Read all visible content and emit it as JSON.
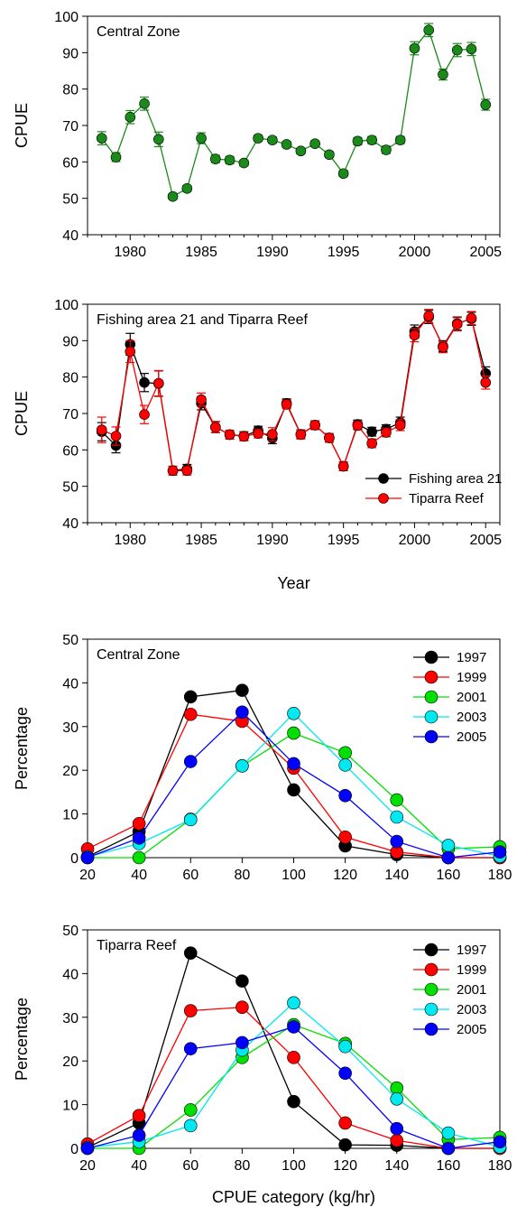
{
  "chart_data": [
    {
      "type": "line",
      "panel_label": "Central Zone",
      "ylabel": "CPUE",
      "xlabel": "",
      "xlim": [
        1977,
        2006
      ],
      "ylim": [
        40,
        100
      ],
      "xticks": [
        "1980",
        "1985",
        "1990",
        "1995",
        "2000",
        "2005"
      ],
      "yticks": [
        "40",
        "50",
        "60",
        "70",
        "80",
        "90",
        "100"
      ],
      "error_bars": true,
      "legend": null,
      "series": [
        {
          "color": "#1a8a1a",
          "x": [
            1978,
            1979,
            1980,
            1981,
            1982,
            1983,
            1984,
            1985,
            1986,
            1987,
            1988,
            1989,
            1990,
            1991,
            1992,
            1993,
            1994,
            1995,
            1996,
            1997,
            1998,
            1999,
            2000,
            2001,
            2002,
            2003,
            2004,
            2005
          ],
          "y": [
            66.5,
            61.3,
            72.3,
            76.0,
            66.2,
            50.5,
            52.7,
            66.5,
            60.8,
            60.5,
            59.7,
            66.5,
            66.0,
            64.8,
            63.0,
            65.0,
            62.0,
            56.8,
            65.7,
            66.0,
            63.3,
            66.0,
            91.2,
            96.2,
            84.0,
            90.7,
            91.0,
            75.7
          ],
          "err": [
            1.8,
            1.2,
            1.8,
            1.8,
            2.0,
            0.8,
            0.8,
            1.5,
            1.0,
            1.0,
            0.8,
            0.8,
            0.8,
            0.8,
            0.8,
            0.8,
            0.8,
            0.8,
            1.0,
            1.0,
            1.0,
            1.0,
            1.8,
            1.8,
            1.5,
            1.8,
            1.8,
            1.5
          ]
        }
      ]
    },
    {
      "type": "line",
      "panel_label": "Fishing area 21 and Tiparra Reef",
      "ylabel": "CPUE",
      "xlabel": "Year",
      "xlim": [
        1977,
        2006
      ],
      "ylim": [
        40,
        100
      ],
      "xticks": [
        "1980",
        "1985",
        "1990",
        "1995",
        "2000",
        "2005"
      ],
      "yticks": [
        "40",
        "50",
        "60",
        "70",
        "80",
        "90",
        "100"
      ],
      "error_bars": true,
      "legend": "bottom-right",
      "series": [
        {
          "name": "Fishing area 21",
          "color": "#000000",
          "x": [
            1978,
            1979,
            1980,
            1981,
            1982,
            1983,
            1984,
            1985,
            1986,
            1987,
            1988,
            1989,
            1990,
            1991,
            1992,
            1993,
            1994,
            1995,
            1996,
            1997,
            1998,
            1999,
            2000,
            2001,
            2002,
            2003,
            2004,
            2005
          ],
          "y": [
            65.0,
            61.2,
            89.0,
            78.5,
            78.2,
            54.3,
            54.8,
            72.8,
            66.3,
            64.2,
            63.8,
            65.3,
            63.2,
            72.8,
            64.3,
            66.8,
            63.3,
            55.5,
            67.0,
            65.0,
            65.7,
            67.5,
            92.5,
            96.5,
            88.5,
            94.7,
            96.0,
            81.0
          ],
          "err": [
            2.5,
            2.0,
            3.0,
            2.5,
            3.5,
            1.2,
            1.2,
            1.8,
            1.5,
            1.2,
            1.2,
            1.2,
            1.5,
            1.2,
            1.2,
            1.2,
            1.2,
            1.2,
            1.2,
            1.2,
            1.2,
            1.5,
            1.8,
            1.8,
            1.5,
            1.8,
            1.8,
            1.8
          ]
        },
        {
          "name": "Tiparra Reef",
          "color": "#ff0000",
          "x": [
            1978,
            1979,
            1980,
            1981,
            1982,
            1983,
            1984,
            1985,
            1986,
            1987,
            1988,
            1989,
            1990,
            1991,
            1992,
            1993,
            1994,
            1995,
            1996,
            1997,
            1998,
            1999,
            2000,
            2001,
            2002,
            2003,
            2004,
            2005
          ],
          "y": [
            65.5,
            63.8,
            87.0,
            69.7,
            78.3,
            54.3,
            54.3,
            73.8,
            66.2,
            64.2,
            63.7,
            64.5,
            64.3,
            72.5,
            64.2,
            66.8,
            63.3,
            55.5,
            66.7,
            61.8,
            64.8,
            66.8,
            91.5,
            96.8,
            88.2,
            94.5,
            96.2,
            78.5
          ],
          "err": [
            3.5,
            2.5,
            3.0,
            2.5,
            3.5,
            1.2,
            1.2,
            1.8,
            1.5,
            1.2,
            1.2,
            1.2,
            1.8,
            1.2,
            1.2,
            1.2,
            1.2,
            1.2,
            1.2,
            1.2,
            1.2,
            1.5,
            1.8,
            1.8,
            1.5,
            1.8,
            1.8,
            1.8
          ]
        }
      ]
    },
    {
      "type": "line",
      "panel_label": "Central Zone",
      "ylabel": "Percentage",
      "xlabel": "",
      "xlim": [
        20,
        180
      ],
      "ylim": [
        0,
        50
      ],
      "xticks": [
        "20",
        "40",
        "60",
        "80",
        "100",
        "120",
        "140",
        "160",
        "180"
      ],
      "yticks": [
        "0",
        "10",
        "20",
        "30",
        "40",
        "50"
      ],
      "error_bars": false,
      "legend": "top-right",
      "x": [
        20,
        40,
        60,
        80,
        100,
        120,
        140,
        160,
        180
      ],
      "series": [
        {
          "name": "1997",
          "color": "#000000",
          "values": [
            0.2,
            6.0,
            36.8,
            38.3,
            15.5,
            2.7,
            0.7,
            0.0,
            0.0
          ]
        },
        {
          "name": "1999",
          "color": "#ff0000",
          "values": [
            2.0,
            7.8,
            32.8,
            31.2,
            20.5,
            4.7,
            1.3,
            0.0,
            0.0
          ]
        },
        {
          "name": "2001",
          "color": "#00e000",
          "values": [
            0.0,
            0.0,
            8.8,
            21.0,
            28.5,
            24.0,
            13.2,
            2.0,
            2.5
          ]
        },
        {
          "name": "2003",
          "color": "#00e8f0",
          "values": [
            0.2,
            3.2,
            8.7,
            21.0,
            33.0,
            21.2,
            9.3,
            2.8,
            0.3
          ]
        },
        {
          "name": "2005",
          "color": "#0000ff",
          "values": [
            0.0,
            4.5,
            22.0,
            33.3,
            21.5,
            14.2,
            3.7,
            0.0,
            1.3
          ]
        }
      ]
    },
    {
      "type": "line",
      "panel_label": "Tiparra Reef",
      "ylabel": "Percentage",
      "xlabel": "CPUE category (kg/hr)",
      "xlim": [
        20,
        180
      ],
      "ylim": [
        0,
        50
      ],
      "xticks": [
        "20",
        "40",
        "60",
        "80",
        "100",
        "120",
        "140",
        "160",
        "180"
      ],
      "yticks": [
        "0",
        "10",
        "20",
        "30",
        "40",
        "50"
      ],
      "error_bars": false,
      "legend": "top-right",
      "x": [
        20,
        40,
        60,
        80,
        100,
        120,
        140,
        160,
        180
      ],
      "series": [
        {
          "name": "1997",
          "color": "#000000",
          "values": [
            0.2,
            5.8,
            44.7,
            38.3,
            10.7,
            0.8,
            0.7,
            0.0,
            0.0
          ]
        },
        {
          "name": "1999",
          "color": "#ff0000",
          "values": [
            1.0,
            7.5,
            31.5,
            32.3,
            20.8,
            5.8,
            1.8,
            0.0,
            0.0
          ]
        },
        {
          "name": "2001",
          "color": "#00e000",
          "values": [
            0.0,
            0.0,
            8.8,
            20.8,
            28.3,
            24.0,
            13.8,
            2.0,
            2.5
          ]
        },
        {
          "name": "2003",
          "color": "#00e8f0",
          "values": [
            0.2,
            1.5,
            5.2,
            22.5,
            33.3,
            23.3,
            11.3,
            3.5,
            0.3
          ]
        },
        {
          "name": "2005",
          "color": "#0000ff",
          "values": [
            0.0,
            3.0,
            22.8,
            24.2,
            27.8,
            17.2,
            4.5,
            0.0,
            1.5
          ]
        }
      ]
    }
  ]
}
